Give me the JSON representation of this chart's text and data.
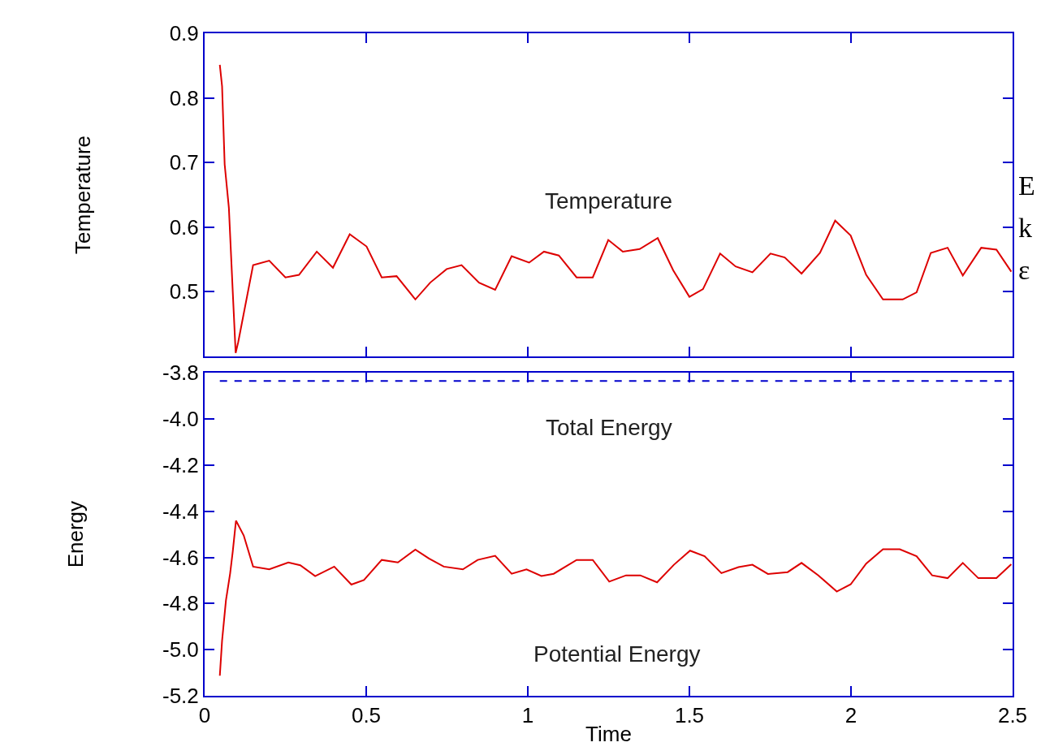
{
  "chart_data": [
    {
      "type": "line",
      "ylabel": "Temperature",
      "xlim": [
        0,
        2.5
      ],
      "xticks": [
        0,
        0.5,
        1,
        1.5,
        2,
        2.5
      ],
      "ylim": [
        0.4,
        0.9
      ],
      "yticks": [
        0.5,
        0.6,
        0.7,
        0.8,
        0.9
      ],
      "tick_labels": "y",
      "legend": false,
      "marker": "none",
      "annotations": [
        "E",
        "k",
        "ε"
      ],
      "series": [
        {
          "name": "Temperature",
          "color": "#dd0000",
          "line_style": "solid",
          "x": [
            0.047,
            0.054,
            0.062,
            0.075,
            0.087,
            0.096,
            0.104,
            0.15,
            0.2,
            0.25,
            0.292,
            0.347,
            0.397,
            0.449,
            0.501,
            0.548,
            0.594,
            0.652,
            0.698,
            0.749,
            0.795,
            0.849,
            0.899,
            0.95,
            1.004,
            1.05,
            1.096,
            1.151,
            1.201,
            1.249,
            1.294,
            1.346,
            1.402,
            1.45,
            1.5,
            1.542,
            1.595,
            1.643,
            1.695,
            1.751,
            1.795,
            1.847,
            1.904,
            1.951,
            1.999,
            2.047,
            2.099,
            2.16,
            2.203,
            2.247,
            2.299,
            2.346,
            2.403,
            2.45,
            2.496
          ],
          "values": [
            0.851,
            0.818,
            0.697,
            0.63,
            0.5,
            0.405,
            0.422,
            0.541,
            0.548,
            0.522,
            0.526,
            0.562,
            0.537,
            0.589,
            0.57,
            0.522,
            0.524,
            0.488,
            0.514,
            0.535,
            0.541,
            0.514,
            0.503,
            0.555,
            0.545,
            0.562,
            0.556,
            0.522,
            0.522,
            0.58,
            0.562,
            0.566,
            0.583,
            0.533,
            0.492,
            0.504,
            0.559,
            0.539,
            0.53,
            0.559,
            0.553,
            0.528,
            0.56,
            0.61,
            0.587,
            0.526,
            0.488,
            0.488,
            0.499,
            0.56,
            0.568,
            0.525,
            0.568,
            0.565,
            0.531
          ]
        }
      ]
    },
    {
      "type": "line",
      "xlabel": "Time",
      "ylabel": "Energy",
      "xlim": [
        0,
        2.5
      ],
      "xticks": [
        0,
        0.5,
        1,
        1.5,
        2,
        2.5
      ],
      "ylim": [
        -5.2,
        -3.8
      ],
      "yticks": [
        {
          "value": -5.2,
          "label": "-5.2"
        },
        {
          "value": -5.0,
          "label": "-5.0"
        },
        {
          "value": -4.8,
          "label": "-4.8"
        },
        {
          "value": -4.6,
          "label": "-4.6"
        },
        {
          "value": -4.4,
          "label": "-4.4"
        },
        {
          "value": -4.2,
          "label": "-4.2"
        },
        {
          "value": -4.0,
          "label": "-4.0"
        },
        {
          "value": -3.8,
          "label": "-3.8"
        }
      ],
      "legend": false,
      "marker": "none",
      "series": [
        {
          "name": "Total Energy",
          "color": "#0000cc",
          "line_style": "dashed",
          "x": [
            0.047,
            2.5
          ],
          "values": [
            -3.835,
            -3.835
          ]
        },
        {
          "name": "Potential Energy",
          "color": "#dd0000",
          "line_style": "solid",
          "x": [
            0.047,
            0.054,
            0.066,
            0.079,
            0.087,
            0.097,
            0.121,
            0.15,
            0.2,
            0.259,
            0.296,
            0.342,
            0.401,
            0.454,
            0.493,
            0.548,
            0.598,
            0.652,
            0.694,
            0.74,
            0.799,
            0.845,
            0.899,
            0.95,
            0.996,
            1.042,
            1.08,
            1.151,
            1.201,
            1.252,
            1.304,
            1.348,
            1.4,
            1.452,
            1.502,
            1.547,
            1.599,
            1.652,
            1.695,
            1.743,
            1.804,
            1.847,
            1.899,
            1.956,
            1.999,
            2.047,
            2.099,
            2.151,
            2.203,
            2.251,
            2.299,
            2.346,
            2.394,
            2.45,
            2.496
          ],
          "values": [
            -5.113,
            -4.961,
            -4.786,
            -4.669,
            -4.575,
            -4.441,
            -4.505,
            -4.64,
            -4.652,
            -4.622,
            -4.634,
            -4.681,
            -4.64,
            -4.718,
            -4.698,
            -4.611,
            -4.622,
            -4.566,
            -4.605,
            -4.64,
            -4.652,
            -4.611,
            -4.593,
            -4.671,
            -4.652,
            -4.681,
            -4.671,
            -4.611,
            -4.611,
            -4.705,
            -4.678,
            -4.678,
            -4.708,
            -4.632,
            -4.571,
            -4.595,
            -4.668,
            -4.642,
            -4.632,
            -4.672,
            -4.664,
            -4.624,
            -4.678,
            -4.748,
            -4.717,
            -4.627,
            -4.565,
            -4.565,
            -4.595,
            -4.678,
            -4.69,
            -4.624,
            -4.69,
            -4.69,
            -4.63
          ]
        }
      ]
    }
  ]
}
